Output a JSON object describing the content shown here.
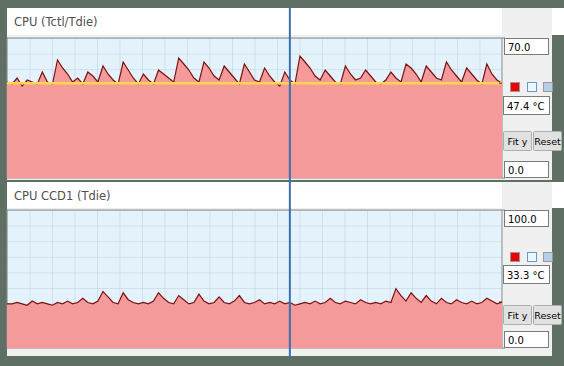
{
  "chart_data": [
    {
      "type": "area",
      "title": "CPU (Tctl/Tdie)",
      "color": "#f59a9a",
      "values": [
        48,
        47,
        50,
        46,
        49,
        48,
        47,
        53,
        48,
        47,
        59,
        55,
        52,
        48,
        50,
        47,
        53,
        51,
        48,
        56,
        52,
        49,
        47,
        58,
        54,
        50,
        47,
        52,
        49,
        47,
        54,
        52,
        50,
        48,
        60,
        57,
        54,
        50,
        48,
        58,
        55,
        51,
        49,
        56,
        53,
        50,
        47,
        57,
        53,
        49,
        48,
        55,
        51,
        48,
        46,
        53,
        49,
        47,
        61,
        58,
        55,
        51,
        49,
        54,
        51,
        48,
        47,
        56,
        52,
        49,
        50,
        54,
        51,
        48,
        47,
        49,
        53,
        50,
        48,
        57,
        55,
        52,
        48,
        56,
        53,
        50,
        49,
        58,
        54,
        51,
        48,
        55,
        52,
        49,
        47,
        57,
        52,
        49,
        47.4
      ],
      "ylim": [
        0,
        70
      ],
      "yticks": [
        {
          "value": 0,
          "label": "0.0"
        },
        {
          "value": 70,
          "label": "70.0"
        }
      ],
      "grid": true,
      "tick_labels": "y",
      "current": {
        "value": 47.4,
        "label": "47.4 °C"
      },
      "reference": 47.4,
      "cursor": 56,
      "buttons": [
        "Fit y",
        "Reset"
      ]
    },
    {
      "type": "area",
      "title": "CPU CCD1 (Tdie)",
      "color": "#f59a9a",
      "values": [
        32,
        32,
        33,
        32,
        31,
        34,
        32,
        33,
        32,
        31,
        33,
        32,
        34,
        32,
        33,
        36,
        33,
        32,
        34,
        41,
        37,
        33,
        32,
        40,
        35,
        33,
        32,
        33,
        32,
        34,
        40,
        36,
        33,
        32,
        38,
        35,
        32,
        33,
        39,
        34,
        32,
        33,
        37,
        33,
        32,
        34,
        38,
        33,
        32,
        33,
        35,
        32,
        33,
        32,
        34,
        32,
        33,
        31,
        32,
        33,
        32,
        34,
        32,
        33,
        36,
        33,
        32,
        34,
        33,
        32,
        35,
        33,
        32,
        33,
        32,
        34,
        33,
        43,
        38,
        34,
        40,
        36,
        33,
        38,
        34,
        32,
        36,
        33,
        32,
        35,
        33,
        32,
        34,
        32,
        33,
        36,
        34,
        32,
        33.3
      ],
      "ylim": [
        0,
        100
      ],
      "yticks": [
        {
          "value": 0,
          "label": "0.0"
        },
        {
          "value": 100,
          "label": "100.0"
        }
      ],
      "grid": true,
      "tick_labels": "y",
      "current": {
        "value": 33.3,
        "label": "33.3 °C"
      },
      "buttons": [
        "Fit y",
        "Reset"
      ]
    }
  ]
}
